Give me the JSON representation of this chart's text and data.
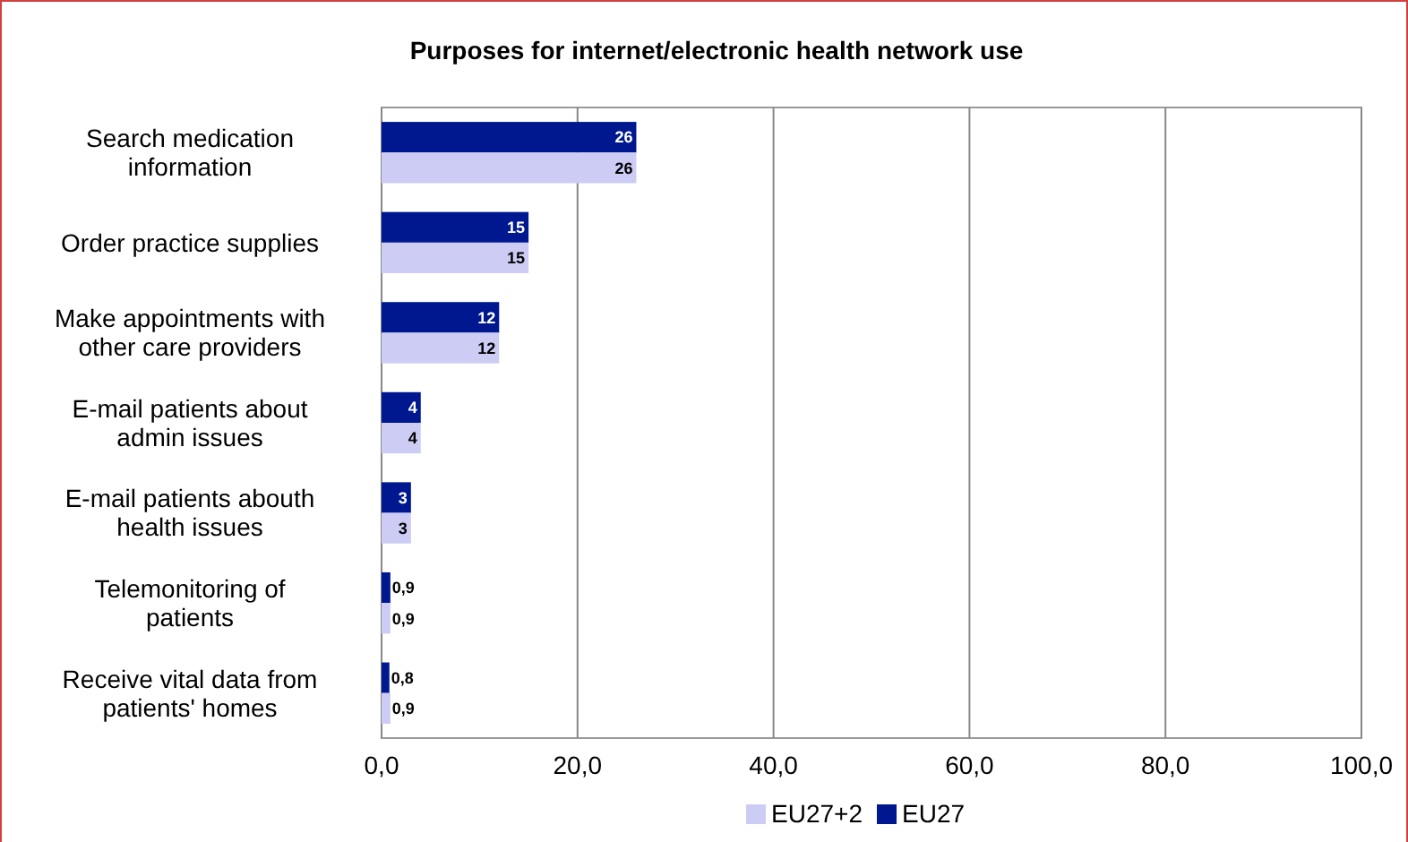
{
  "chart_data": {
    "type": "bar",
    "orientation": "horizontal",
    "title": "Purposes for internet/electronic health network use",
    "categories": [
      "Search medication information",
      "Order practice supplies",
      "Make appointments with other care providers",
      "E-mail patients about admin issues",
      "E-mail patients abouth health issues",
      "Telemonitoring of patients",
      "Receive vital data from patients' homes"
    ],
    "series": [
      {
        "name": "EU27",
        "color": "#00188f",
        "values": [
          26,
          15,
          12,
          4,
          3,
          0.9,
          0.8
        ],
        "value_labels": [
          "26",
          "15",
          "12",
          "4",
          "3",
          "0,9",
          "0,8"
        ]
      },
      {
        "name": "EU27+2",
        "color": "#ccccf5",
        "values": [
          26,
          15,
          12,
          4,
          3,
          0.9,
          0.9
        ],
        "value_labels": [
          "26",
          "15",
          "12",
          "4",
          "3",
          "0,9",
          "0,9"
        ]
      }
    ],
    "xlim": [
      0,
      100
    ],
    "xticks": [
      {
        "value": 0,
        "label": "0,0"
      },
      {
        "value": 20,
        "label": "20,0"
      },
      {
        "value": 40,
        "label": "40,0"
      },
      {
        "value": 60,
        "label": "60,0"
      },
      {
        "value": 80,
        "label": "80,0"
      },
      {
        "value": 100,
        "label": "100,0"
      }
    ],
    "grid": "x",
    "legend": "bottom"
  }
}
